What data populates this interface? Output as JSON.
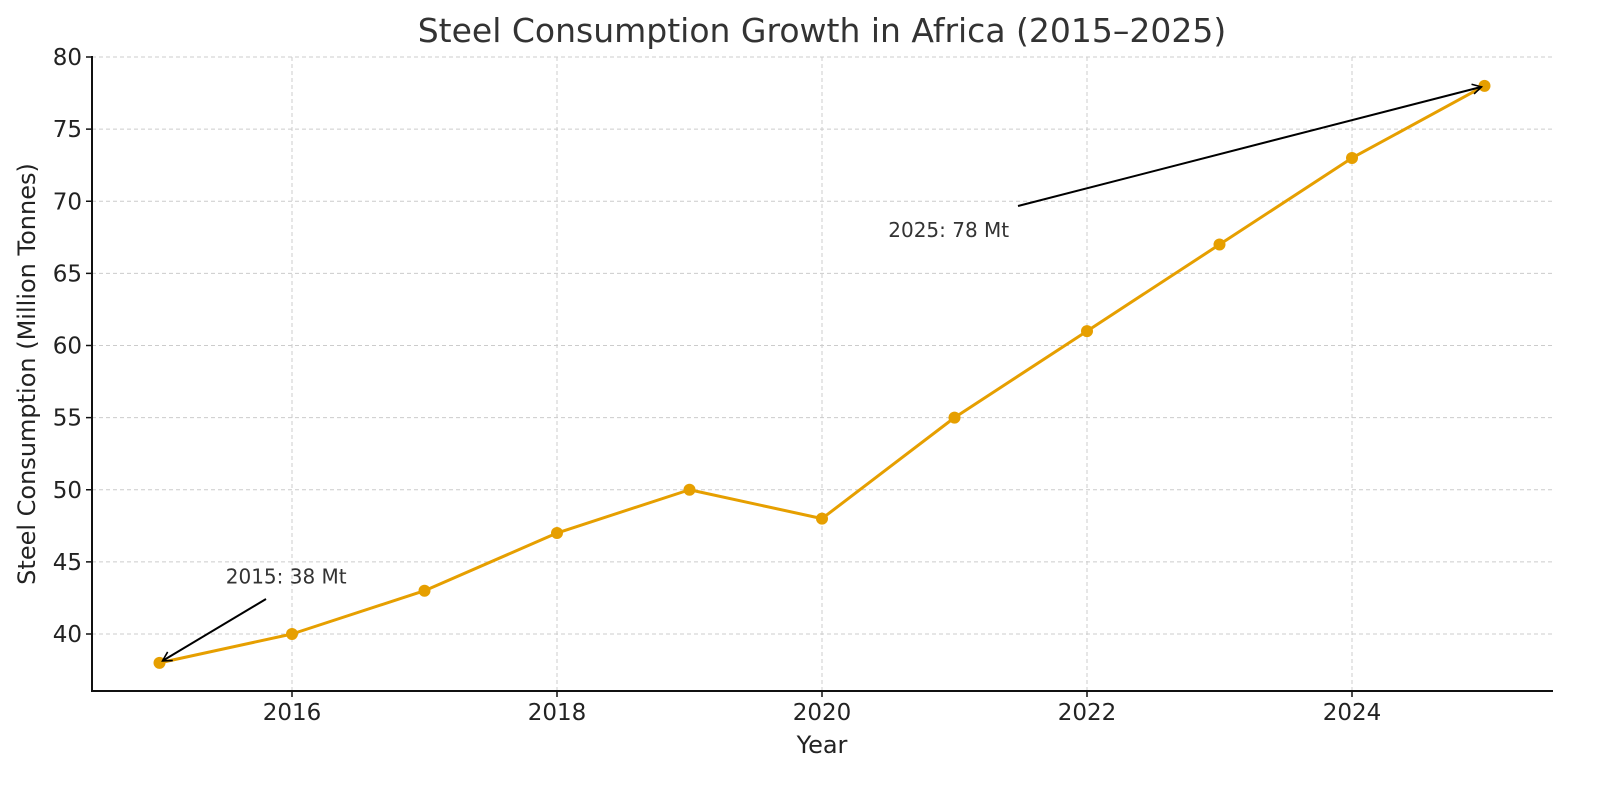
{
  "chart_data": {
    "type": "line",
    "title": "Steel Consumption Growth in Africa (2015–2025)",
    "xlabel": "Year",
    "ylabel": "Steel Consumption (Million Tonnes)",
    "x": [
      2015,
      2016,
      2017,
      2018,
      2019,
      2020,
      2021,
      2022,
      2023,
      2024,
      2025
    ],
    "series": [
      {
        "name": "Steel Consumption",
        "values": [
          38,
          40,
          43,
          47,
          50,
          48,
          55,
          61,
          67,
          73,
          78
        ],
        "color": "#E69F00",
        "marker": "circle"
      }
    ],
    "xlim": [
      2014.5,
      2025.5
    ],
    "ylim": [
      36.05,
      80
    ],
    "xticks": [
      2016,
      2018,
      2020,
      2022,
      2024
    ],
    "xtick_labels": [
      "2016",
      "2018",
      "2020",
      "2022",
      "2024"
    ],
    "yticks": [
      40,
      45,
      50,
      55,
      60,
      65,
      70,
      75,
      80
    ],
    "ytick_labels": [
      "40",
      "45",
      "50",
      "55",
      "60",
      "65",
      "70",
      "75",
      "80"
    ],
    "grid": true,
    "grid_style": "dashed",
    "annotations": [
      {
        "text": "2015: 38 Mt",
        "point": [
          2015,
          38
        ],
        "text_pos": [
          2015.5,
          44
        ]
      },
      {
        "text": "2025: 78 Mt",
        "point": [
          2025,
          78
        ],
        "text_pos": [
          2020.5,
          68
        ]
      }
    ],
    "legend": "none"
  }
}
